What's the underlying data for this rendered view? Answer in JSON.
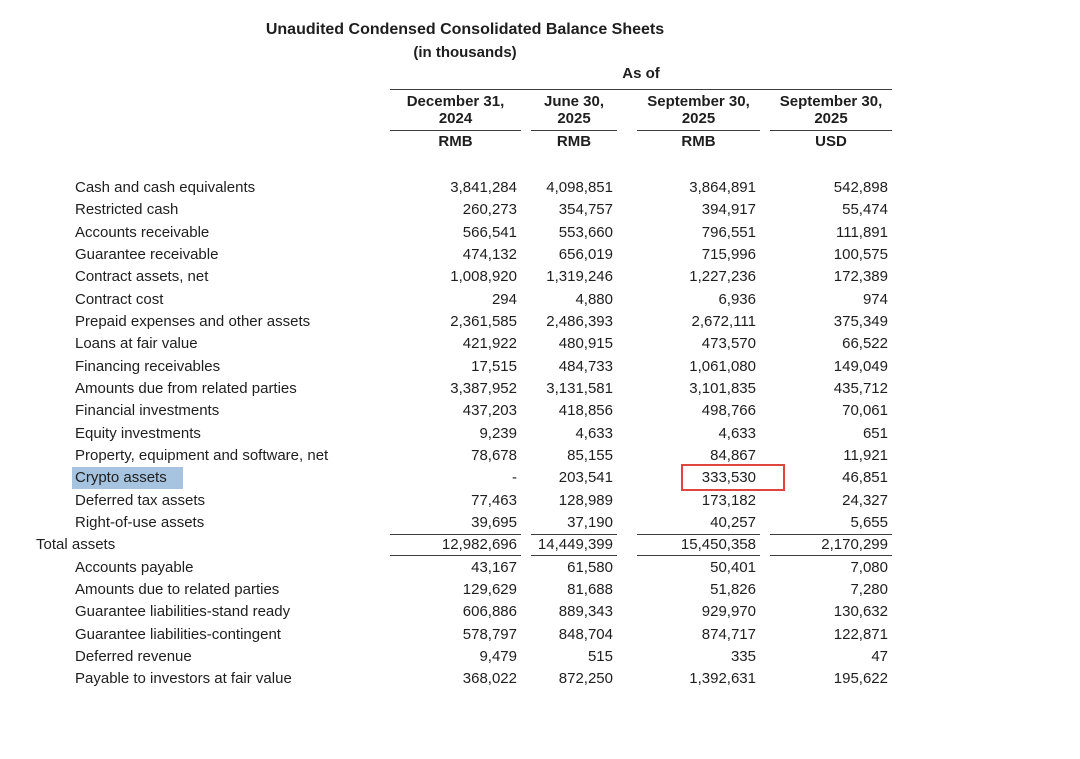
{
  "title": "Unaudited Condensed Consolidated Balance Sheets",
  "subtitle": "(in thousands)",
  "table": {
    "span_header": "As of",
    "columns": [
      {
        "date": "December 31,",
        "year": "2024",
        "currency": "RMB"
      },
      {
        "date": "June 30,",
        "year": "2025",
        "currency": "RMB"
      },
      {
        "date": "September 30,",
        "year": "2025",
        "currency": "RMB"
      },
      {
        "date": "September 30,",
        "year": "2025",
        "currency": "USD"
      }
    ],
    "rows": [
      {
        "label": "Cash and cash equivalents",
        "values": [
          "3,841,284",
          "4,098,851",
          "3,864,891",
          "542,898"
        ]
      },
      {
        "label": "Restricted cash",
        "values": [
          "260,273",
          "354,757",
          "394,917",
          "55,474"
        ]
      },
      {
        "label": "Accounts receivable",
        "values": [
          "566,541",
          "553,660",
          "796,551",
          "111,891"
        ]
      },
      {
        "label": "Guarantee receivable",
        "values": [
          "474,132",
          "656,019",
          "715,996",
          "100,575"
        ]
      },
      {
        "label": "Contract assets, net",
        "values": [
          "1,008,920",
          "1,319,246",
          "1,227,236",
          "172,389"
        ]
      },
      {
        "label": "Contract cost",
        "values": [
          "294",
          "4,880",
          "6,936",
          "974"
        ]
      },
      {
        "label": "Prepaid expenses and other assets",
        "values": [
          "2,361,585",
          "2,486,393",
          "2,672,111",
          "375,349"
        ]
      },
      {
        "label": "Loans at fair value",
        "values": [
          "421,922",
          "480,915",
          "473,570",
          "66,522"
        ]
      },
      {
        "label": "Financing receivables",
        "values": [
          "17,515",
          "484,733",
          "1,061,080",
          "149,049"
        ]
      },
      {
        "label": "Amounts due from related parties",
        "values": [
          "3,387,952",
          "3,131,581",
          "3,101,835",
          "435,712"
        ]
      },
      {
        "label": "Financial investments",
        "values": [
          "437,203",
          "418,856",
          "498,766",
          "70,061"
        ]
      },
      {
        "label": "Equity investments",
        "values": [
          "9,239",
          "4,633",
          "4,633",
          "651"
        ]
      },
      {
        "label": "Property, equipment and software, net",
        "values": [
          "78,678",
          "85,155",
          "84,867",
          "11,921"
        ]
      },
      {
        "label": "Crypto assets",
        "values": [
          "-",
          "203,541",
          "333,530",
          "46,851"
        ],
        "label_highlighted": true,
        "boxed_value_index": 2
      },
      {
        "label": "Deferred tax assets",
        "values": [
          "77,463",
          "128,989",
          "173,182",
          "24,327"
        ]
      },
      {
        "label": "Right-of-use assets",
        "values": [
          "39,695",
          "37,190",
          "40,257",
          "5,655"
        ]
      },
      {
        "label": "Total assets",
        "values": [
          "12,982,696",
          "14,449,399",
          "15,450,358",
          "2,170,299"
        ],
        "style": "total"
      },
      {
        "label": "Accounts payable",
        "values": [
          "43,167",
          "61,580",
          "50,401",
          "7,080"
        ]
      },
      {
        "label": "Amounts due to related parties",
        "values": [
          "129,629",
          "81,688",
          "51,826",
          "7,280"
        ]
      },
      {
        "label": "Guarantee liabilities-stand ready",
        "values": [
          "606,886",
          "889,343",
          "929,970",
          "130,632"
        ]
      },
      {
        "label": "Guarantee liabilities-contingent",
        "values": [
          "578,797",
          "848,704",
          "874,717",
          "122,871"
        ]
      },
      {
        "label": "Deferred revenue",
        "values": [
          "9,479",
          "515",
          "335",
          "47"
        ]
      },
      {
        "label": "Payable to investors at fair value",
        "values": [
          "368,022",
          "872,250",
          "1,392,631",
          "195,622"
        ]
      }
    ]
  },
  "annotations": {
    "label_highlight_color": "#a6c4e0",
    "value_box_color": "#e0443f"
  }
}
